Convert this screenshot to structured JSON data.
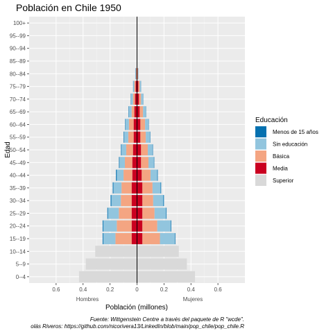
{
  "chart_data": {
    "type": "bar",
    "orientation": "horizontal",
    "stacked": true,
    "title": "Población en Chile 1950",
    "xlabel": "Población (millones)",
    "ylabel": "Edad",
    "x_side_labels": {
      "left": "Hombres",
      "right": "Mujeres"
    },
    "xlim": [
      -0.8,
      0.8
    ],
    "x_ticks": [
      -0.6,
      -0.4,
      -0.2,
      0,
      0.2,
      0.4,
      0.6
    ],
    "x_tick_labels": [
      "0.6",
      "0.4",
      "0.2",
      "0",
      "0.2",
      "0.4",
      "0.6"
    ],
    "grid": true,
    "legend": {
      "title": "Educación",
      "position": "right"
    },
    "caption": [
      "Fuente: Wittgenstein Centre a través del paquete de R \"wcde\".",
      "olás Riveros: https://github.com/nicorivera13/LinkedIn/blob/main/pop_chile/pop_chile.R"
    ],
    "categories": [
      "0--4",
      "5--9",
      "10--14",
      "15--19",
      "20--24",
      "25--29",
      "30--34",
      "35--39",
      "40--44",
      "45--49",
      "50--54",
      "55--59",
      "60--64",
      "65--69",
      "70--74",
      "75--79",
      "80--84",
      "85--89",
      "90--94",
      "95--99",
      "100+"
    ],
    "series": [
      {
        "name": "Menos de 15 años",
        "color": "#0571b0",
        "men": [
          0,
          0,
          0,
          0.005,
          0.005,
          0.005,
          0.006,
          0.005,
          0.006,
          0.004,
          0.004,
          0.004,
          0.003,
          0.003,
          0.002,
          0.001,
          0.001,
          0,
          0,
          0,
          0
        ],
        "women": [
          0,
          0,
          0,
          0.004,
          0.004,
          0.004,
          0.005,
          0.004,
          0.004,
          0.003,
          0.003,
          0.003,
          0.002,
          0.002,
          0.001,
          0.001,
          0,
          0,
          0,
          0,
          0
        ]
      },
      {
        "name": "Sin educación",
        "color": "#92c5de",
        "men": [
          0,
          0,
          0,
          0.09,
          0.1,
          0.08,
          0.07,
          0.06,
          0.05,
          0.04,
          0.035,
          0.03,
          0.025,
          0.02,
          0.015,
          0.008,
          0.004,
          0,
          0,
          0,
          0
        ],
        "women": [
          0,
          0,
          0,
          0.11,
          0.1,
          0.085,
          0.075,
          0.06,
          0.05,
          0.04,
          0.035,
          0.03,
          0.025,
          0.02,
          0.015,
          0.008,
          0.004,
          0,
          0,
          0,
          0
        ]
      },
      {
        "name": "Básica",
        "color": "#f4a582",
        "men": [
          0,
          0,
          0,
          0.12,
          0.11,
          0.095,
          0.08,
          0.075,
          0.065,
          0.055,
          0.05,
          0.04,
          0.035,
          0.02,
          0.015,
          0.01,
          0.004,
          0,
          0,
          0,
          0
        ],
        "women": [
          0,
          0,
          0,
          0.13,
          0.11,
          0.09,
          0.08,
          0.075,
          0.065,
          0.055,
          0.05,
          0.04,
          0.035,
          0.025,
          0.015,
          0.01,
          0.004,
          0,
          0,
          0,
          0
        ]
      },
      {
        "name": "Media",
        "color": "#ca0020",
        "men": [
          0,
          0,
          0,
          0.04,
          0.04,
          0.04,
          0.04,
          0.04,
          0.035,
          0.035,
          0.03,
          0.025,
          0.025,
          0.02,
          0.015,
          0.01,
          0.004,
          0.002,
          0,
          0,
          0
        ],
        "women": [
          0,
          0,
          0,
          0.04,
          0.04,
          0.04,
          0.04,
          0.04,
          0.035,
          0.03,
          0.03,
          0.025,
          0.025,
          0.02,
          0.015,
          0.01,
          0.004,
          0.002,
          0,
          0,
          0
        ]
      },
      {
        "name": "Superior",
        "color": "#d9d9d9",
        "men": [
          0.43,
          0.38,
          0.31,
          0,
          0,
          0,
          0,
          0,
          0,
          0,
          0,
          0,
          0,
          0,
          0,
          0,
          0,
          0,
          0,
          0,
          0
        ],
        "women": [
          0.43,
          0.37,
          0.31,
          0,
          0,
          0,
          0,
          0,
          0,
          0,
          0,
          0,
          0,
          0,
          0,
          0,
          0,
          0,
          0,
          0,
          0
        ]
      }
    ]
  }
}
